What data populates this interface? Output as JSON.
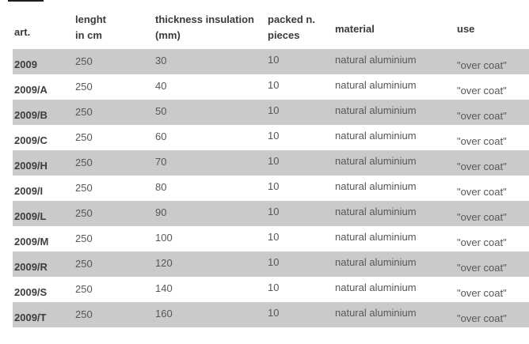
{
  "colors": {
    "stripe": "#cacaca",
    "header_text": "#3a3a3a",
    "value_text": "#56575a",
    "art_column_text": "#3d3e40",
    "top_dash": "#1d1d1b",
    "background": "#ffffff"
  },
  "table": {
    "headers": {
      "art": {
        "line1": "art.",
        "line2": ""
      },
      "length": {
        "line1": "lenght",
        "line2": "in cm"
      },
      "thickness": {
        "line1": "thickness insulation",
        "line2": "(mm)"
      },
      "packed": {
        "line1": "packed n.",
        "line2": "pieces"
      },
      "material": {
        "line1": "material",
        "line2": ""
      },
      "use": {
        "line1": "use",
        "line2": ""
      }
    },
    "rows": [
      {
        "art": "2009",
        "length": "250",
        "thickness": "30",
        "packed": "10",
        "material": "natural aluminium",
        "use": "\"over coat\""
      },
      {
        "art": "2009/A",
        "length": "250",
        "thickness": "40",
        "packed": "10",
        "material": "natural aluminium",
        "use": "\"over coat\""
      },
      {
        "art": "2009/B",
        "length": "250",
        "thickness": "50",
        "packed": "10",
        "material": "natural aluminium",
        "use": "\"over coat\""
      },
      {
        "art": "2009/C",
        "length": "250",
        "thickness": "60",
        "packed": "10",
        "material": "natural aluminium",
        "use": "\"over coat\""
      },
      {
        "art": "2009/H",
        "length": "250",
        "thickness": "70",
        "packed": "10",
        "material": "natural aluminium",
        "use": "\"over coat\""
      },
      {
        "art": "2009/I",
        "length": "250",
        "thickness": "80",
        "packed": "10",
        "material": "natural aluminium",
        "use": "\"over coat\""
      },
      {
        "art": "2009/L",
        "length": "250",
        "thickness": "90",
        "packed": "10",
        "material": "natural aluminium",
        "use": "\"over coat\""
      },
      {
        "art": "2009/M",
        "length": "250",
        "thickness": "100",
        "packed": "10",
        "material": "natural aluminium",
        "use": "\"over coat\""
      },
      {
        "art": "2009/R",
        "length": "250",
        "thickness": "120",
        "packed": "10",
        "material": "natural aluminium",
        "use": "\"over coat\""
      },
      {
        "art": "2009/S",
        "length": "250",
        "thickness": "140",
        "packed": "10",
        "material": "natural aluminium",
        "use": "\"over coat\""
      },
      {
        "art": "2009/T",
        "length": "250",
        "thickness": "160",
        "packed": "10",
        "material": "natural aluminium",
        "use": "\"over coat\""
      }
    ]
  }
}
